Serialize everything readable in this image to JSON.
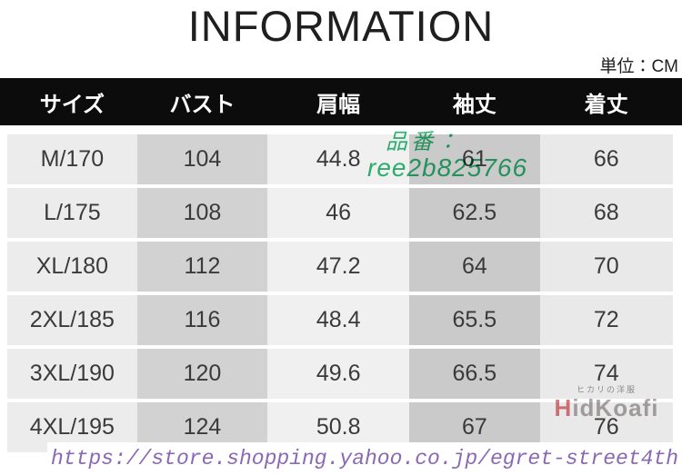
{
  "title": "INFORMATION",
  "unit_label": "単位：CM",
  "table": {
    "headers": [
      "サイズ",
      "バスト",
      "肩幅",
      "袖丈",
      "着丈"
    ],
    "rows": [
      [
        "M/170",
        "104",
        "44.8",
        "61",
        "66"
      ],
      [
        "L/175",
        "108",
        "46",
        "62.5",
        "68"
      ],
      [
        "XL/180",
        "112",
        "47.2",
        "64",
        "70"
      ],
      [
        "2XL/185",
        "116",
        "48.4",
        "65.5",
        "72"
      ],
      [
        "3XL/190",
        "120",
        "49.6",
        "66.5",
        "74"
      ],
      [
        "4XL/195",
        "124",
        "50.8",
        "67",
        "76"
      ]
    ]
  },
  "watermarks": {
    "product_code_label": "品番：",
    "product_code_value": "ree2b825766",
    "shop_logo_top_text": "ヒカリの洋服",
    "shop_logo_initial": "H",
    "shop_logo_rest": "idKoafi",
    "url": "https://store.shopping.yahoo.co.jp/egret-street4th"
  },
  "colors": {
    "header_bg": "#0c0c0c",
    "header_text": "#ffffff",
    "col_backgrounds": [
      "#ececec",
      "#d2d2d2",
      "#f0f0f0",
      "#cacaca",
      "#e9e9e9"
    ],
    "cell_text": "#3a3a3a",
    "product_code_color": "#2eb875",
    "url_color": "#8a68b4"
  }
}
